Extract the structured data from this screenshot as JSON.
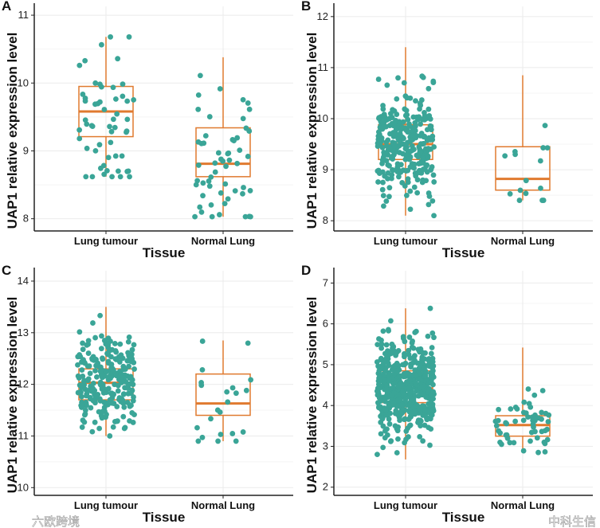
{
  "colors": {
    "point": "#3aa597",
    "box": "#e07a2f",
    "grid": "#ebebeb",
    "axis": "#222222"
  },
  "watermarks": [
    "中科生信",
    "六欧跨境"
  ],
  "chart_data": [
    {
      "type": "boxplot",
      "panel_label": "A",
      "xlabel": "Tissue",
      "ylabel": "UAP1 relative expression level",
      "categories": [
        "Lung tumour",
        "Normal Lung"
      ],
      "ylim": [
        7.82,
        11.13
      ],
      "yticks": [
        8,
        9,
        10,
        11
      ],
      "grid": true,
      "boxes": [
        {
          "min": 8.62,
          "q1": 9.21,
          "median": 9.58,
          "q3": 9.95,
          "max": 10.68,
          "n": 55
        },
        {
          "min": 8.03,
          "q1": 8.62,
          "median": 8.81,
          "q3": 9.34,
          "max": 10.38,
          "n": 55
        }
      ]
    },
    {
      "type": "boxplot",
      "panel_label": "B",
      "xlabel": "Tissue",
      "ylabel": "UAP1 relative expression level",
      "categories": [
        "Lung tumour",
        "Normal Lung"
      ],
      "ylim": [
        7.8,
        12.2
      ],
      "yticks": [
        8,
        9,
        10,
        11,
        12
      ],
      "grid": true,
      "boxes": [
        {
          "min": 8.1,
          "q1": 9.2,
          "median": 9.5,
          "q3": 9.88,
          "max": 11.4,
          "n": 300
        },
        {
          "min": 8.4,
          "q1": 8.6,
          "median": 8.82,
          "q3": 9.45,
          "max": 10.85,
          "n": 15
        }
      ]
    },
    {
      "type": "boxplot",
      "panel_label": "C",
      "xlabel": "Tissue",
      "ylabel": "UAP1 relative expression level",
      "categories": [
        "Lung tumour",
        "Normal Lung"
      ],
      "ylim": [
        9.85,
        14.2
      ],
      "yticks": [
        10,
        11,
        12,
        13,
        14
      ],
      "grid": true,
      "boxes": [
        {
          "min": 11.0,
          "q1": 11.7,
          "median": 12.03,
          "q3": 12.3,
          "max": 13.5,
          "n": 250
        },
        {
          "min": 10.9,
          "q1": 11.4,
          "median": 11.63,
          "q3": 12.2,
          "max": 12.85,
          "n": 22
        }
      ]
    },
    {
      "type": "boxplot",
      "panel_label": "D",
      "xlabel": "Tissue",
      "ylabel": "UAP1 relative expression level",
      "categories": [
        "Lung tumour",
        "Normal Lung"
      ],
      "ylim": [
        1.8,
        7.3
      ],
      "yticks": [
        2,
        3,
        4,
        5,
        6,
        7
      ],
      "grid": true,
      "boxes": [
        {
          "min": 2.68,
          "q1": 4.07,
          "median": 4.42,
          "q3": 4.85,
          "max": 6.38,
          "n": 500
        },
        {
          "min": 2.85,
          "q1": 3.25,
          "median": 3.52,
          "q3": 3.75,
          "max": 5.42,
          "n": 55
        }
      ]
    }
  ]
}
